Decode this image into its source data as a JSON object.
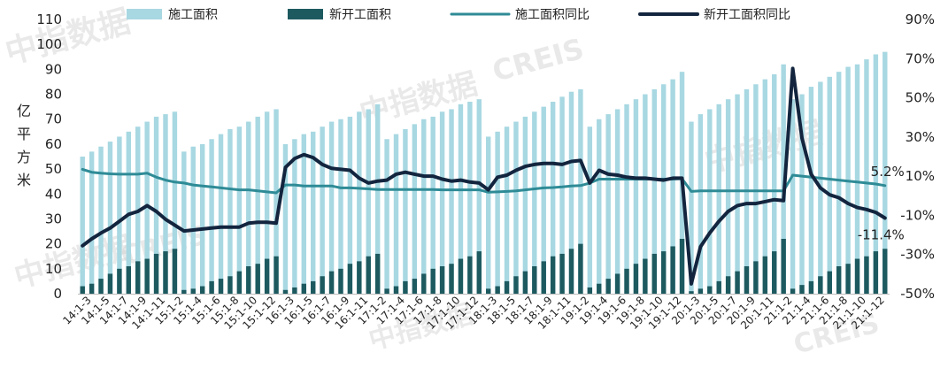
{
  "chart_data": {
    "type": "bar+line",
    "categories": [
      "14:1-2",
      "14:1-3",
      "14:1-4",
      "14:1-5",
      "14:1-6",
      "14:1-7",
      "14:1-8",
      "14:1-9",
      "14:1-10",
      "14:1-11",
      "14:1-12",
      "15:1-2",
      "15:1-3",
      "15:1-4",
      "15:1-5",
      "15:1-6",
      "15:1-7",
      "15:1-8",
      "15:1-9",
      "15:1-10",
      "15:1-11",
      "15:1-12",
      "16:1-2",
      "16:1-3",
      "16:1-4",
      "16:1-5",
      "16:1-6",
      "16:1-7",
      "16:1-8",
      "16:1-9",
      "16:1-10",
      "16:1-11",
      "16:1-12",
      "17:1-2",
      "17:1-3",
      "17:1-4",
      "17:1-5",
      "17:1-6",
      "17:1-7",
      "17:1-8",
      "17:1-9",
      "17:1-10",
      "17:1-11",
      "17:1-12",
      "18:1-2",
      "18:1-3",
      "18:1-4",
      "18:1-5",
      "18:1-6",
      "18:1-7",
      "18:1-8",
      "18:1-9",
      "18:1-10",
      "18:1-11",
      "18:1-12",
      "19:1-2",
      "19:1-3",
      "19:1-4",
      "19:1-5",
      "19:1-6",
      "19:1-7",
      "19:1-8",
      "19:1-9",
      "19:1-10",
      "19:1-11",
      "19:1-12",
      "20:1-2",
      "20:1-3",
      "20:1-4",
      "20:1-5",
      "20:1-6",
      "20:1-7",
      "20:1-8",
      "20:1-9",
      "20:1-10",
      "20:1-11",
      "20:1-12",
      "21:1-2",
      "21:1-3",
      "21:1-4",
      "21:1-5",
      "21:1-6",
      "21:1-7",
      "21:1-8",
      "21:1-9",
      "21:1-10",
      "21:1-11",
      "21:1-12"
    ],
    "x_tick_labels": [
      "14:1-3",
      "14:1-5",
      "14:1-7",
      "14:1-9",
      "14:1-11",
      "15:1-2",
      "15:1-4",
      "15:1-6",
      "15:1-8",
      "15:1-10",
      "15:1-12",
      "16:1-3",
      "16:1-5",
      "16:1-7",
      "16:1-9",
      "16:1-11",
      "17:1-2",
      "17:1-4",
      "17:1-6",
      "17:1-8",
      "17:1-10",
      "17:1-12",
      "18:1-3",
      "18:1-5",
      "18:1-7",
      "18:1-9",
      "18:1-11",
      "19:1-2",
      "19:1-4",
      "19:1-6",
      "19:1-8",
      "19:1-10",
      "19:1-12",
      "20:1-3",
      "20:1-5",
      "20:1-7",
      "20:1-9",
      "20:1-11",
      "21:1-2",
      "21:1-4",
      "21:1-6",
      "21:1-8",
      "21:1-10",
      "21:1-12"
    ],
    "series": [
      {
        "name": "施工面积",
        "kind": "bar",
        "axis": "left",
        "color": "#a8d8e2",
        "values": [
          55,
          57,
          59,
          61,
          63,
          65,
          67,
          69,
          71,
          72,
          73,
          57,
          59,
          60,
          62,
          64,
          66,
          67,
          69,
          71,
          73,
          74,
          60,
          62,
          64,
          65,
          67,
          69,
          70,
          71,
          73,
          74,
          76,
          62,
          64,
          66,
          68,
          70,
          71,
          73,
          74,
          76,
          77,
          78,
          63,
          65,
          67,
          69,
          71,
          73,
          75,
          77,
          79,
          81,
          82,
          67,
          70,
          72,
          74,
          76,
          78,
          80,
          82,
          84,
          86,
          89,
          69,
          72,
          74,
          76,
          78,
          80,
          82,
          84,
          86,
          88,
          92,
          78,
          80,
          83,
          85,
          87,
          89,
          91,
          92,
          94,
          96,
          97
        ]
      },
      {
        "name": "新开工面积",
        "kind": "bar",
        "axis": "left",
        "color": "#1d5a60",
        "values": [
          3,
          4,
          6,
          8,
          10,
          11,
          13,
          14,
          16,
          17,
          18,
          1.5,
          2,
          3,
          5,
          6,
          7,
          9,
          11,
          12,
          14,
          15,
          1.5,
          2.5,
          4,
          5,
          7,
          9,
          10,
          12,
          13,
          15,
          16,
          2,
          3,
          5,
          6,
          8,
          10,
          11,
          12,
          14,
          15,
          17,
          2,
          3,
          5,
          7,
          9,
          11,
          13,
          15,
          16,
          18,
          20,
          2.5,
          4,
          6,
          8,
          10,
          12,
          14,
          16,
          17,
          19,
          22,
          1,
          2,
          3,
          5,
          7,
          9,
          11,
          13,
          15,
          17,
          22,
          2,
          3.5,
          5,
          7,
          9,
          11,
          12,
          14,
          15,
          17,
          18
        ]
      },
      {
        "name": "施工面积同比",
        "kind": "line",
        "axis": "right",
        "color": "#2e8b96",
        "values": [
          13.5,
          12,
          11.5,
          11.2,
          11,
          11,
          11,
          11.5,
          9.5,
          8,
          7,
          6.5,
          5.5,
          5,
          4.5,
          4,
          3.5,
          3,
          3,
          2.5,
          2,
          1.5,
          5.5,
          5.5,
          5,
          5,
          5,
          5,
          4,
          4,
          3.8,
          3.5,
          3.2,
          3.2,
          3.2,
          3.2,
          3.2,
          3.2,
          3.2,
          3,
          3,
          3,
          3,
          3,
          1.8,
          2,
          2.2,
          2.5,
          3,
          3.5,
          4,
          4.2,
          4.5,
          5,
          5.2,
          6.5,
          8.5,
          8.5,
          8.5,
          8.5,
          8.5,
          8.5,
          8.5,
          8.5,
          8.5,
          8.7,
          2.2,
          2.5,
          2.5,
          2.5,
          2.5,
          2.5,
          2.5,
          2.5,
          2.5,
          2.5,
          2.5,
          10.5,
          10,
          9.5,
          9,
          8.5,
          8,
          7.5,
          7,
          6.5,
          6,
          5.2
        ]
      },
      {
        "name": "新开工面积同比",
        "kind": "line",
        "axis": "right",
        "color": "#13253e",
        "values": [
          -25.5,
          -22,
          -19,
          -16.5,
          -13,
          -9.5,
          -8,
          -5,
          -8,
          -12,
          -15,
          -18,
          -17.5,
          -17,
          -16.5,
          -16,
          -16,
          -16,
          -14,
          -13.5,
          -13.5,
          -14,
          14.5,
          19,
          21,
          19.5,
          16,
          14,
          13.5,
          13,
          9,
          6.5,
          7.5,
          8,
          11,
          12,
          11,
          10,
          10,
          8.5,
          7.5,
          8,
          7,
          6.5,
          3,
          9.5,
          10.5,
          13,
          15,
          16,
          16.5,
          16.5,
          16,
          17.5,
          18,
          6.5,
          13,
          11,
          10.5,
          9.5,
          9,
          9,
          8.5,
          8,
          9,
          9,
          -45,
          -26,
          -19,
          -13,
          -8,
          -5,
          -4,
          -4,
          -3,
          -2,
          -2.5,
          65,
          29.5,
          11,
          4,
          0.5,
          -1,
          -4,
          -6,
          -7,
          -8.5,
          -11.4
        ]
      }
    ],
    "y_left": {
      "label": "亿平方米",
      "min": 0,
      "max": 110,
      "ticks": [
        0,
        10,
        20,
        30,
        40,
        50,
        60,
        70,
        80,
        90,
        100,
        110
      ]
    },
    "y_right": {
      "min": -50,
      "max": 90,
      "ticks": [
        "-50%",
        "-30%",
        "-10%",
        "10%",
        "30%",
        "50%",
        "70%",
        "90%"
      ]
    },
    "annotations": [
      {
        "text": "5.2%",
        "series": "施工面积同比",
        "index": 87
      },
      {
        "text": "-11.4%",
        "series": "新开工面积同比",
        "index": 87
      }
    ],
    "legend_placement": "top",
    "grid": false
  },
  "watermark": {
    "texts": [
      "中指数据",
      "CREIS"
    ]
  }
}
